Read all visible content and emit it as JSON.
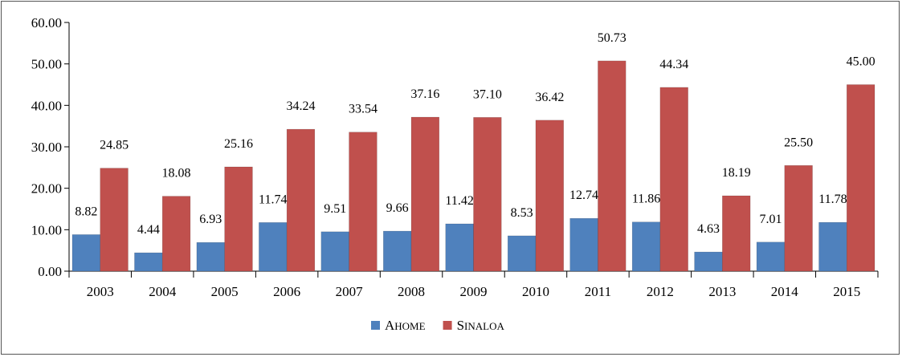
{
  "chart_data": {
    "type": "bar",
    "title": "",
    "xlabel": "",
    "ylabel": "",
    "ylim": [
      0,
      60
    ],
    "yticks": [
      "0.00",
      "10.00",
      "20.00",
      "30.00",
      "40.00",
      "50.00",
      "60.00"
    ],
    "grid": false,
    "legend_position": "bottom-center",
    "categories": [
      "2003",
      "2004",
      "2005",
      "2006",
      "2007",
      "2008",
      "2009",
      "2010",
      "2011",
      "2012",
      "2013",
      "2014",
      "2015"
    ],
    "series": [
      {
        "name": "Ahome",
        "color": "#4F81BD",
        "values": [
          8.82,
          4.44,
          6.93,
          11.74,
          9.51,
          9.66,
          11.42,
          8.53,
          12.74,
          11.86,
          4.63,
          7.01,
          11.78
        ],
        "labels": [
          "8.82",
          "4.44",
          "6.93",
          "11.74",
          "9.51",
          "9.66",
          "11.42",
          "8.53",
          "12.74",
          "11.86",
          "4.63",
          "7.01",
          "11.78"
        ]
      },
      {
        "name": "Sinaloa",
        "color": "#C0504D",
        "values": [
          24.85,
          18.08,
          25.16,
          34.24,
          33.54,
          37.16,
          37.1,
          36.42,
          50.73,
          44.34,
          18.19,
          25.5,
          45.0
        ],
        "labels": [
          "24.85",
          "18.08",
          "25.16",
          "34.24",
          "33.54",
          "37.16",
          "37.10",
          "36.42",
          "50.73",
          "44.34",
          "18.19",
          "25.50",
          "45.00"
        ]
      }
    ]
  }
}
